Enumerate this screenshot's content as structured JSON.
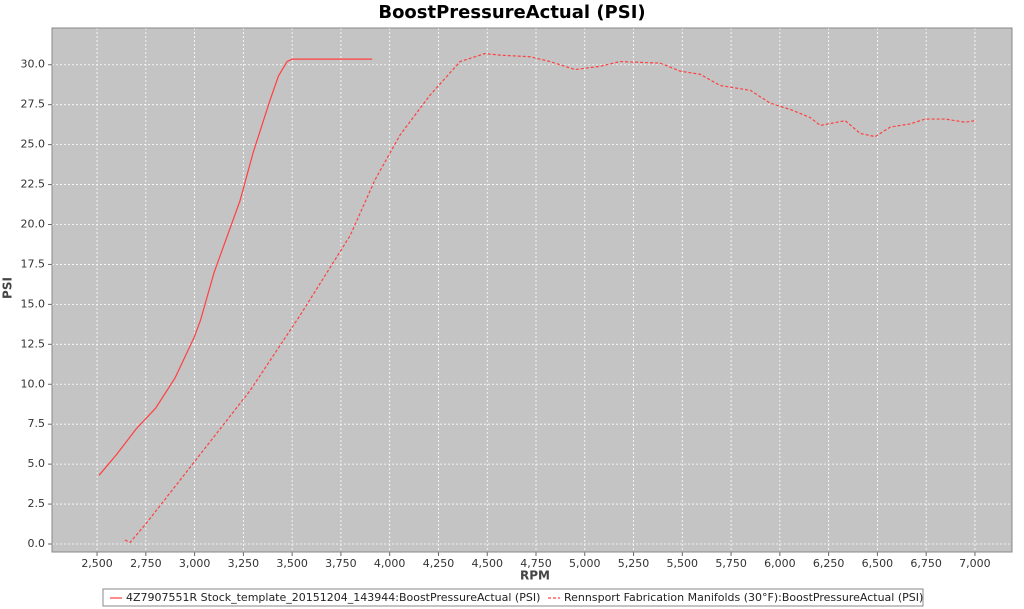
{
  "chart_data": {
    "type": "line",
    "title": "BoostPressureActual (PSI)",
    "x_label": "RPM",
    "y_label": "PSI",
    "xlim": [
      2269,
      7190
    ],
    "ylim": [
      -0.5,
      32.3
    ],
    "xticks": [
      {
        "value": 2500,
        "label": "2,500"
      },
      {
        "value": 2750,
        "label": "2,750"
      },
      {
        "value": 3000,
        "label": "3,000"
      },
      {
        "value": 3250,
        "label": "3,250"
      },
      {
        "value": 3500,
        "label": "3,500"
      },
      {
        "value": 3750,
        "label": "3,750"
      },
      {
        "value": 4000,
        "label": "4,000"
      },
      {
        "value": 4250,
        "label": "4,250"
      },
      {
        "value": 4500,
        "label": "4,500"
      },
      {
        "value": 4750,
        "label": "4,750"
      },
      {
        "value": 5000,
        "label": "5,000"
      },
      {
        "value": 5250,
        "label": "5,250"
      },
      {
        "value": 5500,
        "label": "5,500"
      },
      {
        "value": 5750,
        "label": "5,750"
      },
      {
        "value": 6000,
        "label": "6,000"
      },
      {
        "value": 6250,
        "label": "6,250"
      },
      {
        "value": 6500,
        "label": "6,500"
      },
      {
        "value": 6750,
        "label": "6,750"
      },
      {
        "value": 7000,
        "label": "7,000"
      }
    ],
    "yticks": [
      {
        "value": 0,
        "label": "0.0"
      },
      2.5,
      {
        "value": 5,
        "label": "5.0"
      },
      7.5,
      {
        "value": 10,
        "label": "10.0"
      },
      12.5,
      {
        "value": 15,
        "label": "15.0"
      },
      17.5,
      {
        "value": 20,
        "label": "20.0"
      },
      22.5,
      {
        "value": 25,
        "label": "25.0"
      },
      27.5,
      {
        "value": 30,
        "label": "30.0"
      }
    ],
    "grid": true,
    "series": [
      {
        "name": "4Z7907551R Stock_template_20151204_143944:BoostPressureActual (PSI)",
        "color": "#ff4040",
        "line_style": "solid",
        "x": [
          2510,
          2600,
          2700,
          2800,
          2900,
          3000,
          3030,
          3100,
          3233,
          3300,
          3387,
          3430,
          3474,
          3500,
          3600,
          3700,
          3800,
          3910
        ],
        "values": [
          4.3,
          5.6,
          7.2,
          8.5,
          10.4,
          13.0,
          14.0,
          17.0,
          21.5,
          24.5,
          27.8,
          29.3,
          30.2,
          30.35,
          30.35,
          30.35,
          30.35,
          30.35
        ]
      },
      {
        "name": "Rennsport Fabrication Manifolds (30°F):BoostPressureActual (PSI)",
        "color": "#ff4040",
        "line_style": "dashed",
        "x": [
          2643,
          2669,
          2746,
          3028,
          3284,
          3540,
          3797,
          3925,
          4053,
          4207,
          4361,
          4489,
          4566,
          4720,
          4822,
          4950,
          5078,
          5181,
          5386,
          5489,
          5592,
          5694,
          5848,
          5950,
          6053,
          6155,
          6207,
          6335,
          6412,
          6489,
          6566,
          6668,
          6745,
          6848,
          6950,
          7000
        ],
        "values": [
          0.25,
          0.1,
          1.2,
          5.6,
          9.6,
          14.3,
          19.3,
          22.8,
          25.6,
          28.1,
          30.2,
          30.7,
          30.6,
          30.5,
          30.2,
          29.7,
          29.9,
          30.2,
          30.1,
          29.6,
          29.4,
          28.7,
          28.4,
          27.6,
          27.2,
          26.7,
          26.2,
          26.5,
          25.7,
          25.5,
          26.1,
          26.3,
          26.6,
          26.6,
          26.4,
          26.5
        ]
      }
    ]
  }
}
